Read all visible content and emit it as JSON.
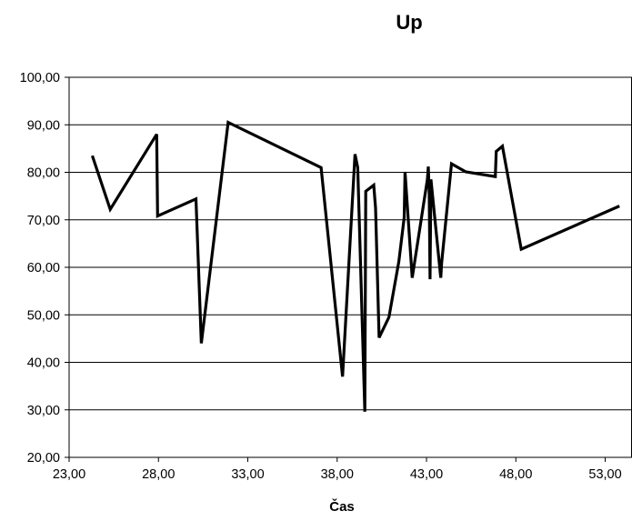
{
  "chart_data": {
    "type": "line",
    "title": "Up",
    "xlabel": "Čas",
    "ylabel": "",
    "xlim": [
      23,
      54.5
    ],
    "ylim": [
      20,
      100
    ],
    "grid": {
      "x": false,
      "y": true
    },
    "legend": false,
    "x_ticks": [
      23,
      28,
      33,
      38,
      43,
      48,
      53
    ],
    "x_tick_labels": [
      "23,00",
      "28,00",
      "33,00",
      "38,00",
      "43,00",
      "48,00",
      "53,00"
    ],
    "y_ticks": [
      20,
      30,
      40,
      50,
      60,
      70,
      80,
      90,
      100
    ],
    "y_tick_labels": [
      "20,00",
      "30,00",
      "40,00",
      "50,00",
      "60,00",
      "70,00",
      "80,00",
      "90,00",
      "100,00"
    ],
    "series": [
      {
        "color": "#000000",
        "x": [
          24.3,
          25.3,
          27.9,
          27.95,
          30.1,
          30.4,
          31.9,
          37.1,
          38.3,
          39.0,
          39.15,
          39.55,
          39.6,
          40.05,
          40.15,
          40.35,
          40.9,
          41.45,
          41.75,
          41.8,
          42.2,
          43.05,
          43.1,
          43.15,
          43.2,
          43.25,
          43.8,
          43.85,
          44.4,
          45.2,
          46.85,
          46.9,
          47.25,
          48.3,
          53.8
        ],
        "y": [
          83.5,
          72.2,
          88.0,
          70.8,
          74.4,
          44.0,
          90.5,
          81.0,
          37.0,
          83.8,
          81.0,
          29.6,
          76.0,
          77.3,
          72.5,
          45.2,
          49.5,
          61.2,
          70.5,
          80.1,
          57.8,
          78.5,
          81.2,
          75.5,
          57.5,
          78.5,
          57.8,
          61.0,
          81.8,
          80.1,
          79.1,
          84.4,
          85.5,
          63.8,
          72.9
        ]
      }
    ]
  }
}
